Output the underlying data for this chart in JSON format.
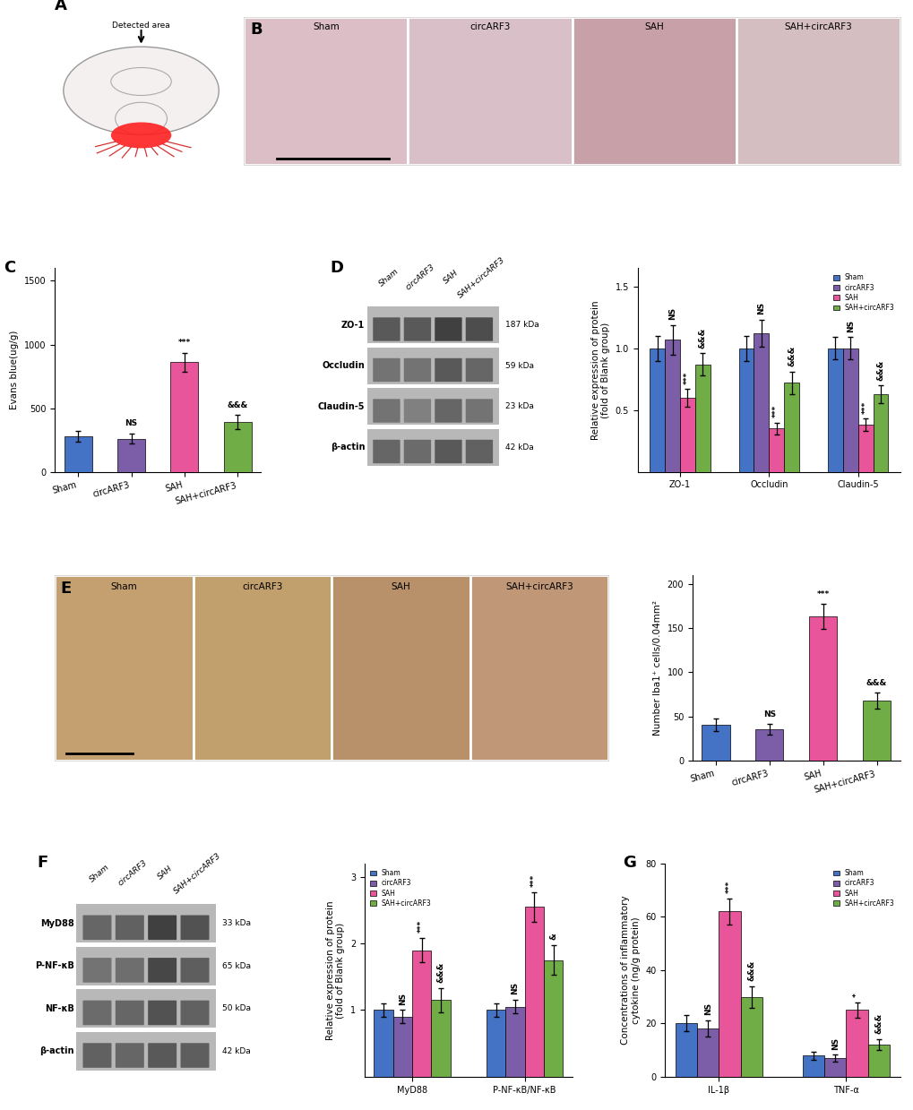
{
  "panel_C": {
    "groups": [
      "Sham",
      "circARF3",
      "SAH",
      "SAH+circARF3"
    ],
    "values": [
      280,
      260,
      860,
      390
    ],
    "errors": [
      45,
      40,
      75,
      55
    ],
    "colors": [
      "#4472C4",
      "#7B5EA7",
      "#E8559A",
      "#70AD47"
    ],
    "ylabel": "Evans blue(ug/g)",
    "ylim": [
      0,
      1600
    ],
    "yticks": [
      0,
      500,
      1000,
      1500
    ],
    "annotations": [
      "",
      "NS",
      "***",
      "&&&"
    ]
  },
  "panel_D_bar": {
    "groups": [
      "ZO-1",
      "Occludin",
      "Claudin-5"
    ],
    "series": [
      "Sham",
      "circARF3",
      "SAH",
      "SAH+circARF3"
    ],
    "colors": [
      "#4472C4",
      "#7B5EA7",
      "#E8559A",
      "#70AD47"
    ],
    "values": [
      [
        1.0,
        1.07,
        0.6,
        0.87
      ],
      [
        1.0,
        1.12,
        0.35,
        0.72
      ],
      [
        1.0,
        1.0,
        0.38,
        0.63
      ]
    ],
    "errors": [
      [
        0.1,
        0.12,
        0.07,
        0.09
      ],
      [
        0.1,
        0.11,
        0.05,
        0.09
      ],
      [
        0.09,
        0.09,
        0.05,
        0.07
      ]
    ],
    "ylabel": "Relative expression of protein\n(fold of Blank group)",
    "ylim": [
      0.0,
      1.65
    ],
    "yticks": [
      0.5,
      1.0,
      1.5
    ],
    "annotations_row": [
      [
        "",
        "NS",
        "***",
        "&&&"
      ],
      [
        "",
        "NS",
        "***",
        "&&&"
      ],
      [
        "",
        "NS",
        "***",
        "&&&"
      ]
    ]
  },
  "panel_E_bar": {
    "groups": [
      "Sham",
      "circARF3",
      "SAH",
      "SAH+circARF3"
    ],
    "values": [
      40,
      35,
      163,
      68
    ],
    "errors": [
      7,
      6,
      14,
      9
    ],
    "colors": [
      "#4472C4",
      "#7B5EA7",
      "#E8559A",
      "#70AD47"
    ],
    "ylabel": "Number Iba1⁺ cells/0.04mm²",
    "ylim": [
      0,
      210
    ],
    "yticks": [
      0,
      50,
      100,
      150,
      200
    ],
    "annotations": [
      "",
      "NS",
      "***",
      "&&&"
    ]
  },
  "panel_F_bar": {
    "groups": [
      "MyD88",
      "P-NF-κB/NF-κB"
    ],
    "series": [
      "Sham",
      "circARF3",
      "SAH",
      "SAH+circARF3"
    ],
    "colors": [
      "#4472C4",
      "#7B5EA7",
      "#E8559A",
      "#70AD47"
    ],
    "values": [
      [
        1.0,
        0.9,
        1.9,
        1.15
      ],
      [
        1.0,
        1.05,
        2.55,
        1.75
      ]
    ],
    "errors": [
      [
        0.1,
        0.1,
        0.18,
        0.18
      ],
      [
        0.1,
        0.1,
        0.22,
        0.22
      ]
    ],
    "ylabel": "Relative expression of protein\n(fold of Blank group)",
    "ylim": [
      0,
      3.2
    ],
    "yticks": [
      1,
      2,
      3
    ],
    "annotations_row": [
      [
        "",
        "NS",
        "***",
        "&&&"
      ],
      [
        "",
        "NS",
        "***",
        "&"
      ]
    ]
  },
  "panel_G": {
    "groups": [
      "IL-1β",
      "TNF-α"
    ],
    "series": [
      "Sham",
      "circARF3",
      "SAH",
      "SAH+circARF3"
    ],
    "colors": [
      "#4472C4",
      "#7B5EA7",
      "#E8559A",
      "#70AD47"
    ],
    "values": [
      [
        20,
        18,
        62,
        30
      ],
      [
        8,
        7,
        25,
        12
      ]
    ],
    "errors": [
      [
        3,
        3,
        5,
        4
      ],
      [
        1.5,
        1.2,
        3,
        2
      ]
    ],
    "ylabel": "Concentrations of inflammatory\ncytokine (ng/g protein)",
    "ylim": [
      0,
      80
    ],
    "yticks": [
      0,
      20,
      40,
      60,
      80
    ],
    "annotations_row": [
      [
        "",
        "NS",
        "***",
        "&&&"
      ],
      [
        "",
        "NS",
        "*",
        "&&&"
      ]
    ]
  },
  "legend_colors": [
    "#4472C4",
    "#7B5EA7",
    "#E8559A",
    "#70AD47"
  ],
  "legend_labels": [
    "Sham",
    "circARF3",
    "SAH",
    "SAH+circARF3"
  ],
  "wb_D_labels": [
    "ZO-1",
    "Occludin",
    "Claudin-5",
    "β-actin"
  ],
  "wb_D_kda": [
    "187 kDa",
    "59 kDa",
    "23 kDa",
    "42 kDa"
  ],
  "wb_D_col_labels": [
    "Sham",
    "circARF3",
    "SAH",
    "SAH+circARF3"
  ],
  "wb_F_labels": [
    "MyD88",
    "P-NF-κB",
    "NF-κB",
    "β-actin"
  ],
  "wb_F_kda": [
    "33 kDa",
    "65 kDa",
    "50 kDa",
    "42 kDa"
  ],
  "wb_F_col_labels": [
    "Sham",
    "circARF3",
    "SAH",
    "SAH+circARF3"
  ],
  "panel_label_fontsize": 13,
  "bar_width": 0.17,
  "error_capsize": 2,
  "tick_fontsize": 7,
  "label_fontsize": 7.5,
  "annotation_fontsize": 6.5
}
